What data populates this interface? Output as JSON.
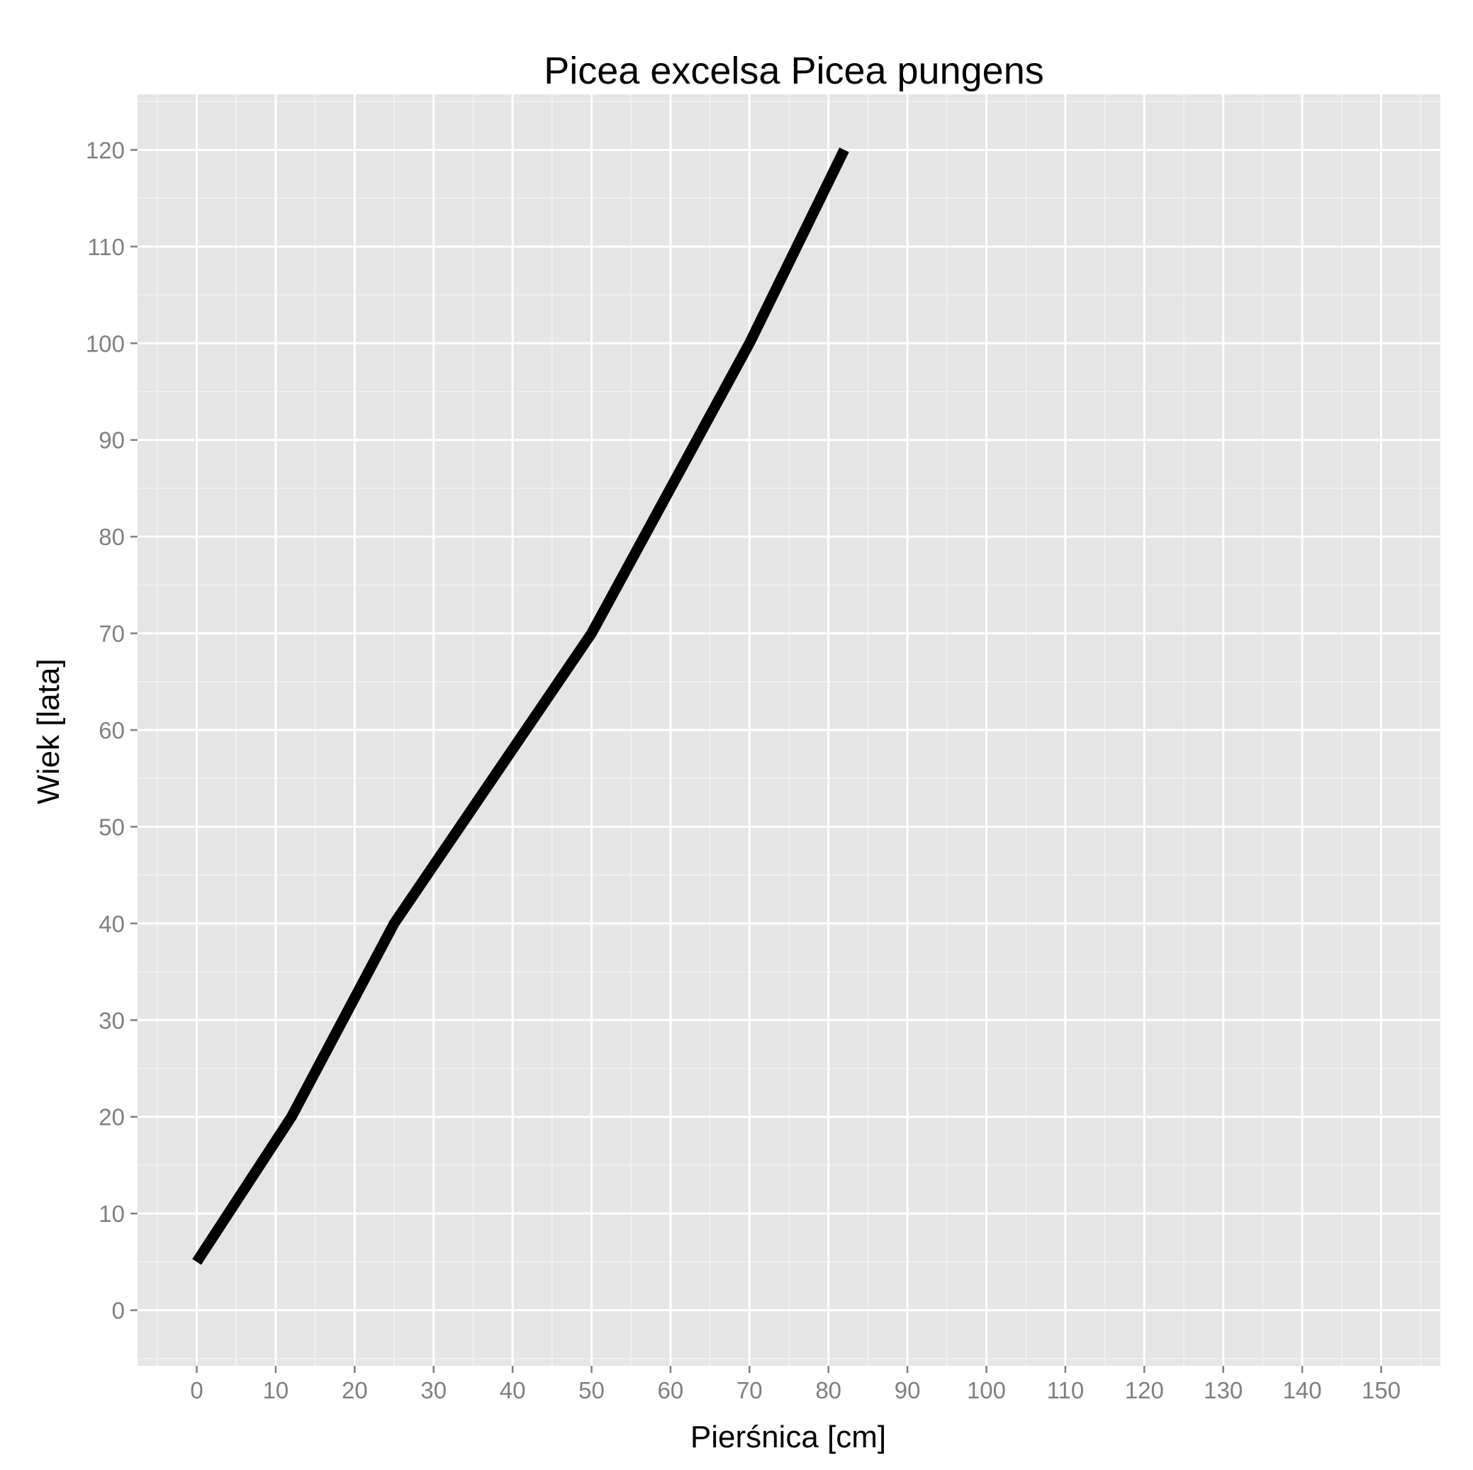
{
  "chart_data": {
    "type": "line",
    "title": "Picea excelsa Picea pungens",
    "xlabel": "Pierśnica [cm]",
    "ylabel": "Wiek [lata]",
    "xlim": [
      -7.5,
      157.5
    ],
    "ylim": [
      -5.75,
      125.75
    ],
    "x_ticks": [
      0,
      10,
      20,
      30,
      40,
      50,
      60,
      70,
      80,
      90,
      100,
      110,
      120,
      130,
      140,
      150
    ],
    "y_ticks": [
      0,
      10,
      20,
      30,
      40,
      50,
      60,
      70,
      80,
      90,
      100,
      110,
      120
    ],
    "grid": true,
    "colors": {
      "panel": "#e5e5e5",
      "grid_major": "#ffffff",
      "grid_minor": "#f2f2f2",
      "line": "#000000",
      "tick": "#7f7f7f"
    },
    "series": [
      {
        "x": [
          0,
          12,
          25,
          35,
          50,
          60,
          70,
          82
        ],
        "y": [
          5,
          20,
          40,
          52,
          70,
          85,
          100,
          120
        ]
      }
    ]
  }
}
